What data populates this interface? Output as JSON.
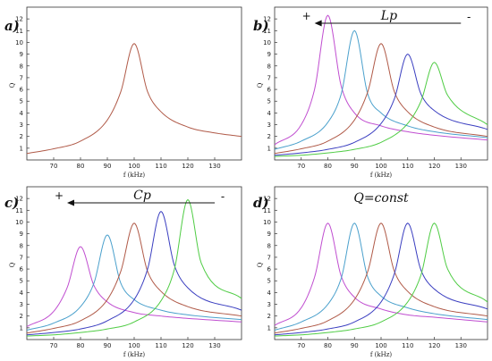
{
  "chart_data": [
    {
      "panel": "a)",
      "type": "line",
      "xlabel": "f (kHz)",
      "ylabel": "Q",
      "xlim": [
        60,
        140
      ],
      "ylim": [
        0,
        13
      ],
      "x_ticks": [
        "70",
        "80",
        "90",
        "100",
        "110",
        "120",
        "130"
      ],
      "y_ticks": [
        "1",
        "2",
        "3",
        "4",
        "5",
        "6",
        "7",
        "8",
        "9",
        "10",
        "11",
        "12"
      ],
      "grid": false,
      "annotation": {
        "label": "",
        "left_sign": "",
        "right_sign": ""
      },
      "series": [
        {
          "color": "#b05a48",
          "peak_x": 100,
          "peak_y": 9.9,
          "x": [
            60,
            70,
            80,
            90,
            95,
            100,
            105,
            110,
            120,
            130,
            140
          ],
          "y": [
            0.55,
            0.95,
            1.6,
            3.4,
            5.8,
            9.9,
            5.8,
            4.1,
            2.8,
            2.3,
            2.0
          ]
        }
      ]
    },
    {
      "panel": "b)",
      "type": "line",
      "xlabel": "f (kHz)",
      "ylabel": "Q",
      "xlim": [
        60,
        140
      ],
      "ylim": [
        0,
        13
      ],
      "x_ticks": [
        "70",
        "80",
        "90",
        "100",
        "110",
        "120",
        "130"
      ],
      "y_ticks": [
        "1",
        "2",
        "3",
        "4",
        "5",
        "6",
        "7",
        "8",
        "9",
        "10",
        "11",
        "12"
      ],
      "grid": false,
      "annotation": {
        "label": "Lp",
        "left_sign": "+",
        "right_sign": "-"
      },
      "series": [
        {
          "color": "#c04ed0",
          "peak_x": 80,
          "peak_y": 12.3,
          "x": [
            60,
            70,
            75,
            80,
            85,
            90,
            100,
            110,
            120,
            140
          ],
          "y": [
            1.3,
            3.0,
            6.0,
            12.3,
            6.3,
            4.0,
            2.9,
            2.4,
            2.1,
            1.7
          ]
        },
        {
          "color": "#4aa0cc",
          "peak_x": 90,
          "peak_y": 11.0,
          "x": [
            60,
            70,
            80,
            85,
            90,
            95,
            100,
            110,
            120,
            140
          ],
          "y": [
            0.9,
            1.6,
            3.2,
            5.6,
            11.0,
            5.6,
            4.0,
            2.9,
            2.4,
            1.9
          ]
        },
        {
          "color": "#b05a48",
          "peak_x": 100,
          "peak_y": 9.9,
          "x": [
            60,
            70,
            80,
            90,
            95,
            100,
            105,
            110,
            120,
            140
          ],
          "y": [
            0.55,
            0.95,
            1.6,
            3.4,
            5.8,
            9.9,
            5.8,
            4.1,
            2.8,
            2.0
          ]
        },
        {
          "color": "#3a3ec0",
          "peak_x": 110,
          "peak_y": 9.0,
          "x": [
            60,
            70,
            80,
            90,
            100,
            105,
            110,
            115,
            120,
            140
          ],
          "y": [
            0.4,
            0.6,
            0.9,
            1.5,
            3.1,
            5.2,
            9.0,
            5.6,
            4.2,
            2.6
          ]
        },
        {
          "color": "#4fcc44",
          "peak_x": 120,
          "peak_y": 8.3,
          "x": [
            60,
            70,
            80,
            90,
            100,
            110,
            115,
            120,
            125,
            140
          ],
          "y": [
            0.3,
            0.4,
            0.6,
            0.9,
            1.5,
            3.1,
            5.0,
            8.3,
            5.5,
            3.0
          ]
        }
      ]
    },
    {
      "panel": "c)",
      "type": "line",
      "xlabel": "f (kHz)",
      "ylabel": "Q",
      "xlim": [
        60,
        140
      ],
      "ylim": [
        0,
        13
      ],
      "x_ticks": [
        "70",
        "80",
        "90",
        "100",
        "110",
        "120",
        "130"
      ],
      "y_ticks": [
        "1",
        "2",
        "3",
        "4",
        "5",
        "6",
        "7",
        "8",
        "9",
        "10",
        "11",
        "12"
      ],
      "grid": false,
      "annotation": {
        "label": "Cp",
        "left_sign": "+",
        "right_sign": "-"
      },
      "series": [
        {
          "color": "#c04ed0",
          "peak_x": 80,
          "peak_y": 7.9,
          "x": [
            60,
            70,
            75,
            80,
            85,
            90,
            100,
            110,
            120,
            140
          ],
          "y": [
            1.1,
            2.4,
            4.4,
            7.9,
            4.6,
            3.2,
            2.3,
            2.0,
            1.8,
            1.5
          ]
        },
        {
          "color": "#4aa0cc",
          "peak_x": 90,
          "peak_y": 8.9,
          "x": [
            60,
            70,
            80,
            85,
            90,
            95,
            100,
            110,
            120,
            140
          ],
          "y": [
            0.8,
            1.4,
            2.8,
            4.8,
            8.9,
            4.8,
            3.4,
            2.5,
            2.1,
            1.7
          ]
        },
        {
          "color": "#b05a48",
          "peak_x": 100,
          "peak_y": 9.9,
          "x": [
            60,
            70,
            80,
            90,
            95,
            100,
            105,
            110,
            120,
            140
          ],
          "y": [
            0.55,
            0.95,
            1.6,
            3.4,
            5.8,
            9.9,
            5.8,
            4.1,
            2.8,
            2.0
          ]
        },
        {
          "color": "#3a3ec0",
          "peak_x": 110,
          "peak_y": 10.9,
          "x": [
            60,
            70,
            80,
            90,
            100,
            105,
            110,
            115,
            120,
            140
          ],
          "y": [
            0.4,
            0.6,
            0.9,
            1.6,
            3.4,
            6.0,
            10.9,
            6.3,
            4.4,
            2.5
          ]
        },
        {
          "color": "#4fcc44",
          "peak_x": 120,
          "peak_y": 11.9,
          "x": [
            60,
            70,
            80,
            90,
            100,
            110,
            115,
            120,
            125,
            140
          ],
          "y": [
            0.3,
            0.4,
            0.6,
            0.9,
            1.5,
            3.3,
            6.0,
            11.9,
            6.5,
            3.5
          ]
        }
      ]
    },
    {
      "panel": "d)",
      "type": "line",
      "xlabel": "f (kHz)",
      "ylabel": "Q",
      "xlim": [
        60,
        140
      ],
      "ylim": [
        0,
        13
      ],
      "x_ticks": [
        "70",
        "80",
        "90",
        "100",
        "110",
        "120",
        "130"
      ],
      "y_ticks": [
        "1",
        "2",
        "3",
        "4",
        "5",
        "6",
        "7",
        "8",
        "9",
        "10",
        "11",
        "12"
      ],
      "grid": false,
      "annotation": {
        "label": "Q=const",
        "left_sign": "",
        "right_sign": ""
      },
      "series": [
        {
          "color": "#c04ed0",
          "peak_x": 80,
          "peak_y": 9.9,
          "x": [
            60,
            70,
            75,
            80,
            85,
            90,
            100,
            110,
            120,
            140
          ],
          "y": [
            1.2,
            2.7,
            5.3,
            9.9,
            5.4,
            3.6,
            2.6,
            2.1,
            1.9,
            1.5
          ]
        },
        {
          "color": "#4aa0cc",
          "peak_x": 90,
          "peak_y": 9.9,
          "x": [
            60,
            70,
            80,
            85,
            90,
            95,
            100,
            110,
            120,
            140
          ],
          "y": [
            0.8,
            1.5,
            3.0,
            5.2,
            9.9,
            5.3,
            3.7,
            2.7,
            2.2,
            1.7
          ]
        },
        {
          "color": "#b05a48",
          "peak_x": 100,
          "peak_y": 9.9,
          "x": [
            60,
            70,
            80,
            90,
            95,
            100,
            105,
            110,
            120,
            140
          ],
          "y": [
            0.55,
            0.95,
            1.6,
            3.4,
            5.8,
            9.9,
            5.8,
            4.1,
            2.8,
            2.0
          ]
        },
        {
          "color": "#3a3ec0",
          "peak_x": 110,
          "peak_y": 9.9,
          "x": [
            60,
            70,
            80,
            90,
            100,
            105,
            110,
            115,
            120,
            140
          ],
          "y": [
            0.4,
            0.6,
            0.9,
            1.5,
            3.2,
            5.6,
            9.9,
            5.9,
            4.3,
            2.6
          ]
        },
        {
          "color": "#4fcc44",
          "peak_x": 120,
          "peak_y": 9.9,
          "x": [
            60,
            70,
            80,
            90,
            100,
            110,
            115,
            120,
            125,
            140
          ],
          "y": [
            0.3,
            0.4,
            0.6,
            0.9,
            1.5,
            3.2,
            5.5,
            9.9,
            6.0,
            3.2
          ]
        }
      ]
    }
  ]
}
